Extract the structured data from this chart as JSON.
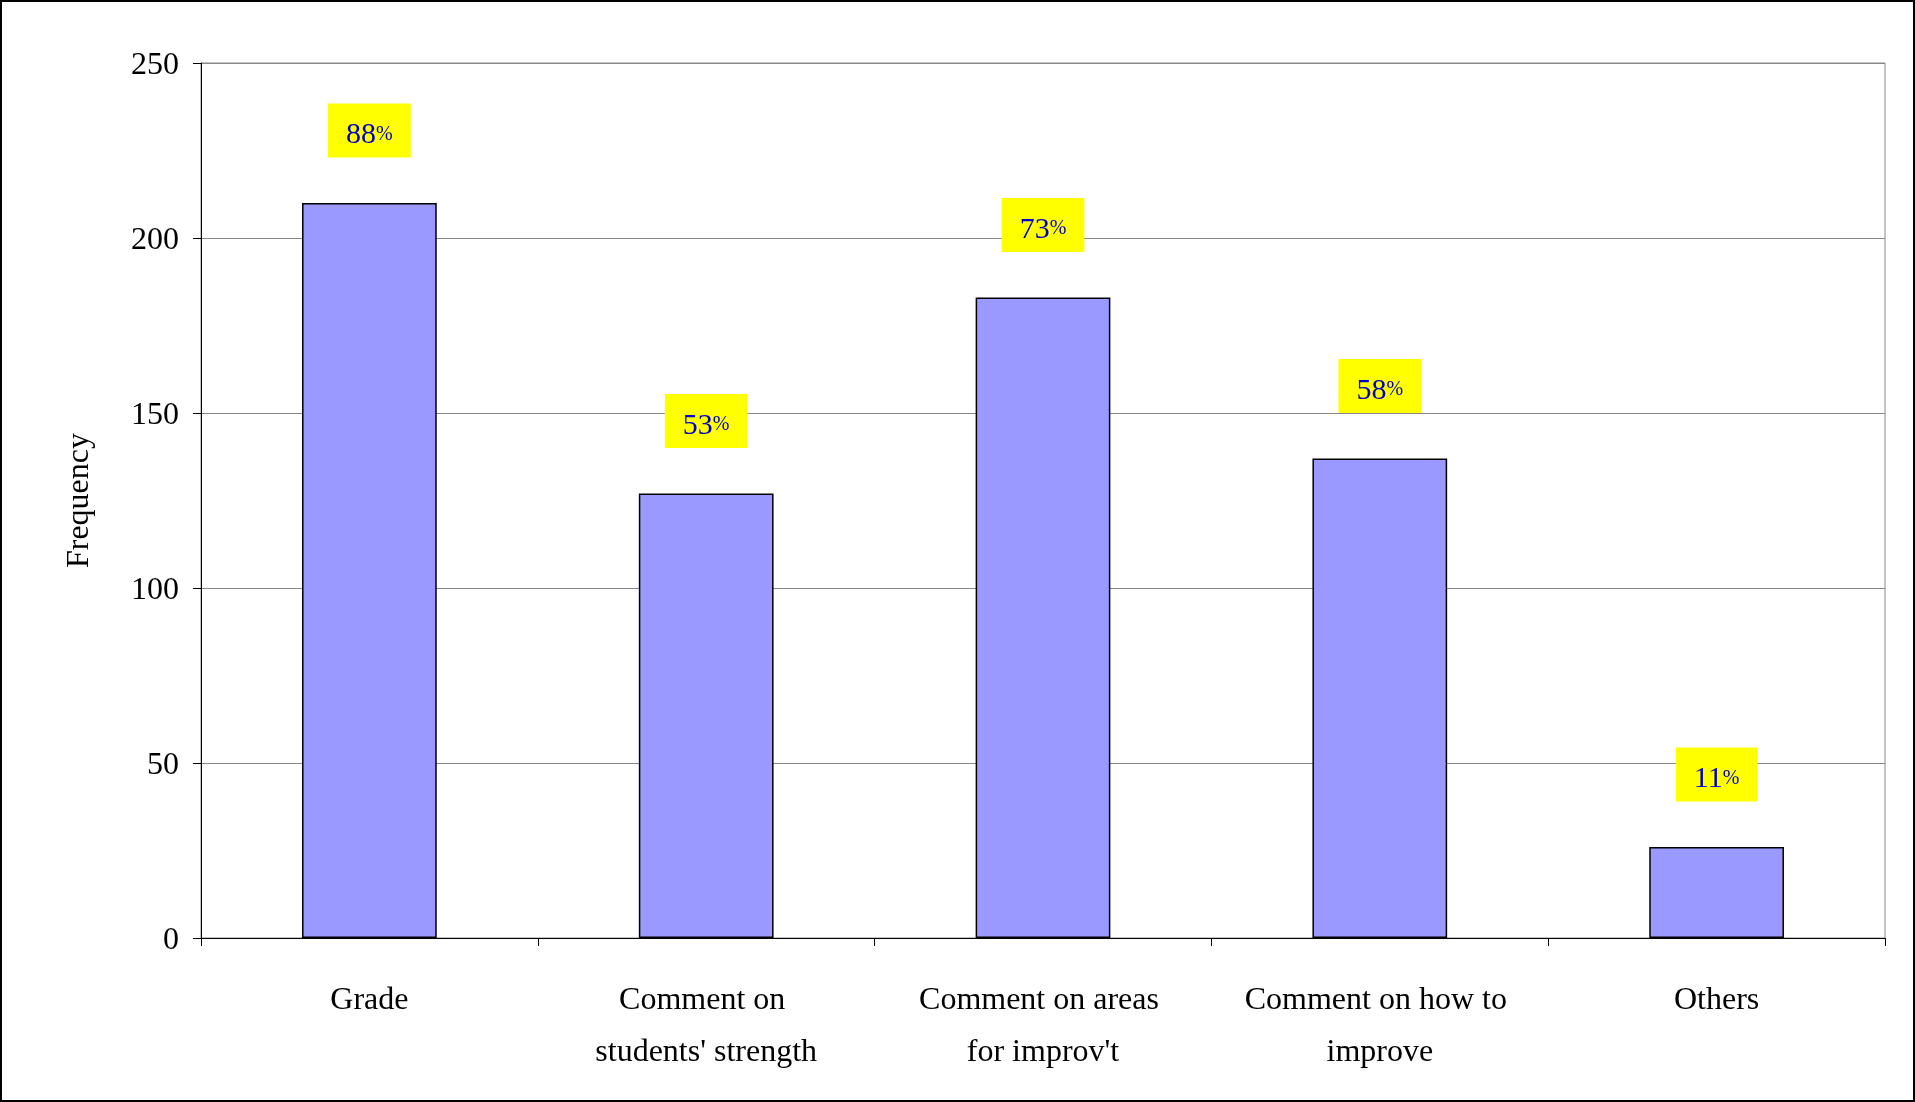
{
  "chart_data": {
    "type": "bar",
    "ylabel": "Frequency",
    "categories": [
      "Grade",
      "Comment on students' strength",
      "Comment on areas for improv't",
      "Comment on how to improve",
      "Others"
    ],
    "values": [
      210,
      127,
      183,
      137,
      26
    ],
    "annotations": [
      {
        "text": "88%",
        "x": "Grade",
        "y": 210
      },
      {
        "text": "53%",
        "x": "Comment on students' strength",
        "y": 127
      },
      {
        "text": "73%",
        "x": "Comment on areas for improv't",
        "y": 183
      },
      {
        "text": "58%",
        "x": "Comment on how to improve",
        "y": 137
      },
      {
        "text": "11%",
        "x": "Others",
        "y": 26
      }
    ],
    "color": "#9999ff",
    "ylim": [
      0,
      250
    ],
    "yticks": [
      0,
      50,
      100,
      150,
      200,
      250
    ],
    "grid": "y"
  }
}
